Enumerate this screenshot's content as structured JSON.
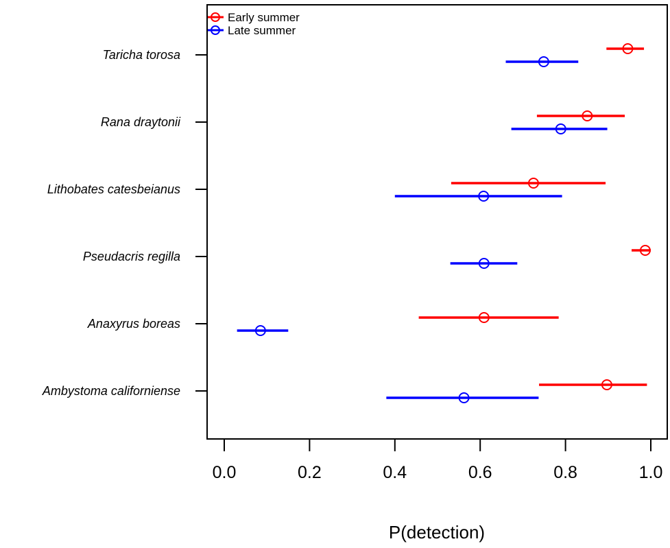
{
  "chart_data": {
    "type": "scatter",
    "title": "",
    "xlabel": "P(detection)",
    "ylabel": "",
    "xlim": [
      -0.04,
      1.04
    ],
    "xticks": [
      0.0,
      0.2,
      0.4,
      0.6,
      0.8,
      1.0
    ],
    "xtick_labels": [
      "0.0",
      "0.2",
      "0.4",
      "0.6",
      "0.8",
      "1.0"
    ],
    "categories": [
      "Taricha torosa",
      "Rana draytonii",
      "Lithobates catesbeianus",
      "Pseudacris regilla",
      "Anaxyrus boreas",
      "Ambystoma californiense"
    ],
    "grid": false,
    "legend_position": "top-left",
    "series": [
      {
        "name": "Early summer",
        "color": "#ff0000",
        "estimates": [
          0.946,
          0.851,
          0.725,
          0.987,
          0.609,
          0.897
        ],
        "lower": [
          0.896,
          0.733,
          0.532,
          0.955,
          0.456,
          0.738
        ],
        "upper": [
          0.984,
          0.939,
          0.894,
          1.0,
          0.784,
          0.991
        ]
      },
      {
        "name": "Late summer",
        "color": "#0000ff",
        "estimates": [
          0.749,
          0.789,
          0.608,
          0.609,
          0.085,
          0.562
        ],
        "lower": [
          0.66,
          0.673,
          0.4,
          0.53,
          0.03,
          0.38
        ],
        "upper": [
          0.83,
          0.898,
          0.792,
          0.687,
          0.15,
          0.737
        ]
      }
    ]
  }
}
